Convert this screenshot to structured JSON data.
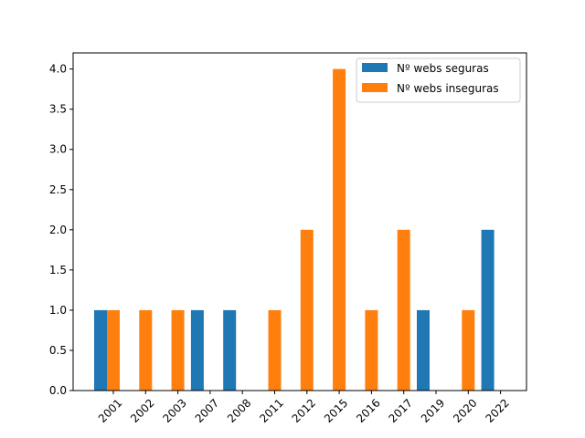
{
  "chart_data": {
    "type": "bar",
    "title": "",
    "xlabel": "",
    "ylabel": "",
    "categories": [
      "2001",
      "2002",
      "2003",
      "2007",
      "2008",
      "2011",
      "2012",
      "2015",
      "2016",
      "2017",
      "2019",
      "2020",
      "2022"
    ],
    "ylim": [
      0,
      4.2
    ],
    "yticks": [
      "0.0",
      "0.5",
      "1.0",
      "1.5",
      "2.0",
      "2.5",
      "3.0",
      "3.5",
      "4.0"
    ],
    "grid": false,
    "legend_position": "top-right",
    "series": [
      {
        "name": "Nº webs seguras",
        "color": "#1f77b4",
        "values": [
          1,
          0,
          0,
          1,
          1,
          0,
          0,
          0,
          0,
          0,
          1,
          0,
          2
        ]
      },
      {
        "name": "Nº webs inseguras",
        "color": "#ff7f0e",
        "values": [
          1,
          1,
          1,
          0,
          0,
          1,
          2,
          4,
          1,
          2,
          0,
          1,
          0
        ]
      }
    ]
  }
}
